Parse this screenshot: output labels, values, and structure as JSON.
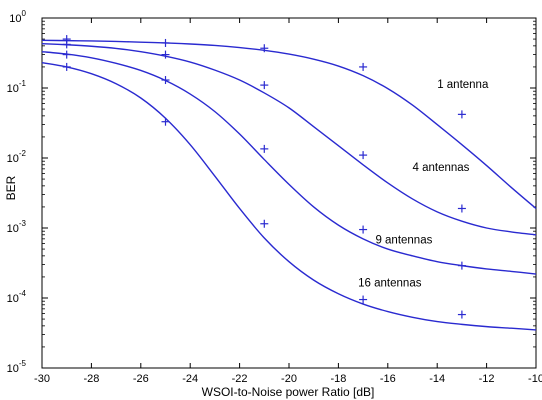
{
  "chart_data": {
    "type": "line",
    "title": "",
    "xlabel": "WSOI-to-Noise power Ratio [dB]",
    "ylabel": "BER",
    "xlim": [
      -30,
      -10
    ],
    "ylim": [
      1e-05,
      1
    ],
    "yscale": "log",
    "grid": false,
    "legend": "none",
    "x_ticks": [
      "-30",
      "-28",
      "-26",
      "-24",
      "-22",
      "-20",
      "-18",
      "-16",
      "-14",
      "-12",
      "-10"
    ],
    "y_ticks": [
      {
        "base": "10",
        "exp": "0"
      },
      {
        "base": "10",
        "exp": "-1"
      },
      {
        "base": "10",
        "exp": "-2"
      },
      {
        "base": "10",
        "exp": "-3"
      },
      {
        "base": "10",
        "exp": "-4"
      },
      {
        "base": "10",
        "exp": "-5"
      }
    ],
    "line_color": "#2a2ad0",
    "series": [
      {
        "label": "1 antenna",
        "label_pos": [
          -14.0,
          0.1
        ],
        "curve_x": [
          -30,
          -29,
          -28,
          -27,
          -26,
          -25,
          -24,
          -23,
          -22,
          -21,
          -20,
          -19,
          -18,
          -17,
          -16,
          -15,
          -14,
          -13,
          -12,
          -11,
          -10
        ],
        "curve_y": [
          0.48,
          0.475,
          0.47,
          0.462,
          0.452,
          0.44,
          0.425,
          0.405,
          0.378,
          0.345,
          0.305,
          0.258,
          0.206,
          0.15,
          0.098,
          0.057,
          0.03,
          0.0155,
          0.0078,
          0.0038,
          0.0019
        ],
        "markers_x": [
          -29,
          -25,
          -21,
          -17,
          -13
        ],
        "markers_y": [
          0.5,
          0.44,
          0.37,
          0.2,
          0.042
        ]
      },
      {
        "label": "4 antennas",
        "label_pos": [
          -15.0,
          0.0065
        ],
        "curve_x": [
          -30,
          -29,
          -28,
          -27,
          -26,
          -25,
          -24,
          -23,
          -22,
          -21,
          -20,
          -19,
          -18,
          -17,
          -16,
          -15,
          -14,
          -13,
          -12,
          -11,
          -10
        ],
        "curve_y": [
          0.43,
          0.415,
          0.395,
          0.368,
          0.33,
          0.285,
          0.235,
          0.18,
          0.13,
          0.085,
          0.052,
          0.028,
          0.015,
          0.008,
          0.0044,
          0.0026,
          0.0017,
          0.00125,
          0.001,
          0.00088,
          0.0008
        ],
        "markers_x": [
          -29,
          -25,
          -21,
          -17,
          -13
        ],
        "markers_y": [
          0.42,
          0.3,
          0.11,
          0.011,
          0.0019
        ]
      },
      {
        "label": "9 antennas",
        "label_pos": [
          -16.5,
          0.0006
        ],
        "curve_x": [
          -30,
          -29,
          -28,
          -27,
          -26,
          -25,
          -24,
          -23,
          -22,
          -21,
          -20,
          -19,
          -18,
          -17,
          -16,
          -15,
          -14,
          -13,
          -12,
          -11,
          -10
        ],
        "curve_y": [
          0.33,
          0.305,
          0.27,
          0.225,
          0.178,
          0.128,
          0.082,
          0.046,
          0.022,
          0.0095,
          0.0042,
          0.002,
          0.0011,
          0.0007,
          0.0005,
          0.0004,
          0.00033,
          0.00029,
          0.00026,
          0.00024,
          0.00022
        ],
        "markers_x": [
          -29,
          -25,
          -21,
          -17,
          -13
        ],
        "markers_y": [
          0.3,
          0.13,
          0.0135,
          0.00095,
          0.00029
        ]
      },
      {
        "label": "16 antennas",
        "label_pos": [
          -17.2,
          0.000145
        ],
        "curve_x": [
          -30,
          -29,
          -28,
          -27,
          -26,
          -25,
          -24,
          -23,
          -22,
          -21,
          -20,
          -19,
          -18,
          -17,
          -16,
          -15,
          -14,
          -13,
          -12,
          -11,
          -10
        ],
        "curve_y": [
          0.23,
          0.2,
          0.16,
          0.115,
          0.072,
          0.037,
          0.0155,
          0.0055,
          0.0019,
          0.00072,
          0.00033,
          0.00018,
          0.000115,
          8.2e-05,
          6.4e-05,
          5.3e-05,
          4.6e-05,
          4.2e-05,
          3.9e-05,
          3.7e-05,
          3.5e-05
        ],
        "markers_x": [
          -29,
          -25,
          -21,
          -17,
          -13
        ],
        "markers_y": [
          0.2,
          0.033,
          0.00115,
          9.5e-05,
          5.8e-05
        ]
      }
    ]
  }
}
